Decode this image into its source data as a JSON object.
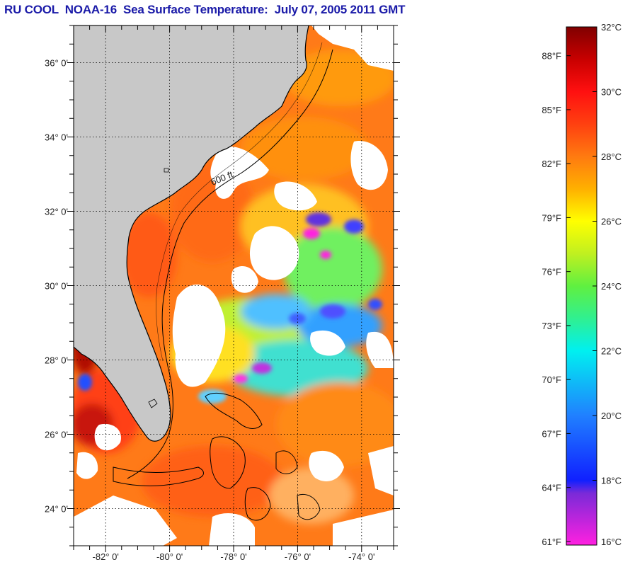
{
  "title": "RU COOL  NOAA-16  Sea Surface Temperature:  July 07, 2005 2011 GMT",
  "map": {
    "lon_range": [
      -83.0,
      -73.0
    ],
    "lat_range": [
      23.0,
      37.0
    ],
    "lon_ticks": [
      {
        "value": -82,
        "label": "-82° 0'"
      },
      {
        "value": -80,
        "label": "-80° 0'"
      },
      {
        "value": -78,
        "label": "-78° 0'"
      },
      {
        "value": -76,
        "label": "-76° 0'"
      },
      {
        "value": -74,
        "label": "-74° 0'"
      }
    ],
    "lat_ticks": [
      {
        "value": 36,
        "label": "36° 0'"
      },
      {
        "value": 34,
        "label": "34° 0'"
      },
      {
        "value": 32,
        "label": "32° 0'"
      },
      {
        "value": 30,
        "label": "30° 0'"
      },
      {
        "value": 28,
        "label": "28° 0'"
      },
      {
        "value": 26,
        "label": "26° 0'"
      },
      {
        "value": 24,
        "label": "24° 0'"
      }
    ],
    "grid": "dotted",
    "land_color": "#c8c8c8",
    "cloud_color": "#ffffff",
    "isobath_labels": [
      "600 ft"
    ]
  },
  "colorbar": {
    "celsius_range": [
      16,
      32
    ],
    "celsius_labels": [
      {
        "value": 32,
        "label": "32°C"
      },
      {
        "value": 30,
        "label": "30°C"
      },
      {
        "value": 28,
        "label": "28°C"
      },
      {
        "value": 26,
        "label": "26°C"
      },
      {
        "value": 24,
        "label": "24°C"
      },
      {
        "value": 22,
        "label": "22°C"
      },
      {
        "value": 20,
        "label": "20°C"
      },
      {
        "value": 18,
        "label": "18°C"
      },
      {
        "value": 16,
        "label": "16°C"
      }
    ],
    "fahrenheit_labels": [
      {
        "value": 88,
        "label": "88°F"
      },
      {
        "value": 85,
        "label": "85°F"
      },
      {
        "value": 82,
        "label": "82°F"
      },
      {
        "value": 79,
        "label": "79°F"
      },
      {
        "value": 76,
        "label": "76°F"
      },
      {
        "value": 73,
        "label": "73°F"
      },
      {
        "value": 70,
        "label": "70°F"
      },
      {
        "value": 67,
        "label": "67°F"
      },
      {
        "value": 64,
        "label": "64°F"
      },
      {
        "value": 61,
        "label": "61°F"
      }
    ],
    "stops": [
      {
        "t": 16,
        "color": "#ff20e0"
      },
      {
        "t": 17.6,
        "color": "#7a2ad8"
      },
      {
        "t": 18,
        "color": "#1020ff"
      },
      {
        "t": 20,
        "color": "#2080ff"
      },
      {
        "t": 22,
        "color": "#00f0f0"
      },
      {
        "t": 23,
        "color": "#30f090"
      },
      {
        "t": 24,
        "color": "#60f040"
      },
      {
        "t": 25,
        "color": "#c0f020"
      },
      {
        "t": 26,
        "color": "#ffff00"
      },
      {
        "t": 27,
        "color": "#ffb000"
      },
      {
        "t": 28,
        "color": "#ff7a10"
      },
      {
        "t": 29,
        "color": "#ff4010"
      },
      {
        "t": 30,
        "color": "#ff1010"
      },
      {
        "t": 31,
        "color": "#c80000"
      },
      {
        "t": 32,
        "color": "#800000"
      }
    ]
  }
}
